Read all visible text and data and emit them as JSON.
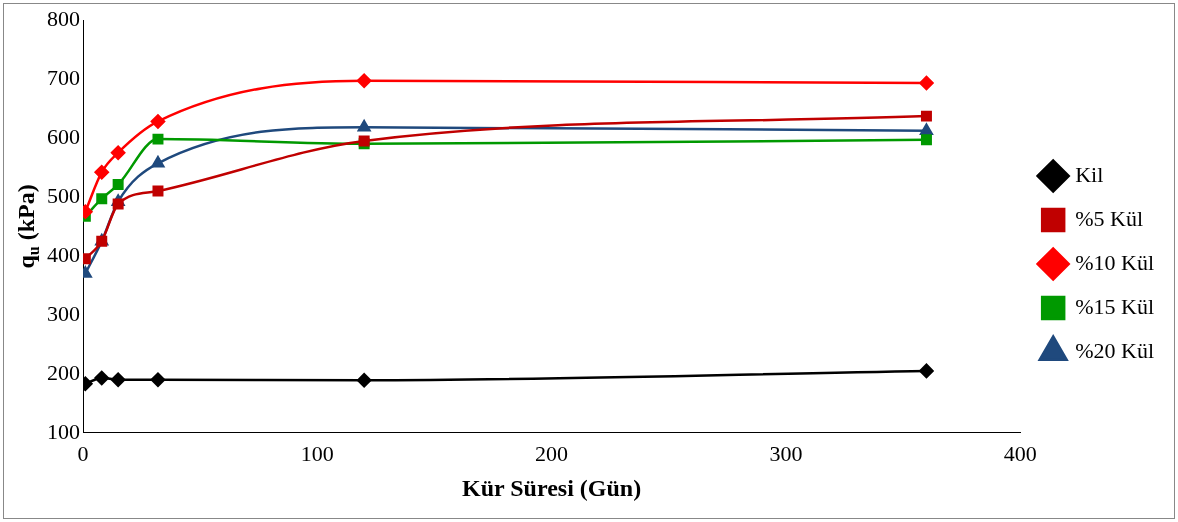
{
  "chart_data": {
    "type": "line",
    "xlabel": "Kür Süresi (Gün)",
    "ylabel": "q$_{u}$ (kPa)",
    "x": [
      1,
      8,
      15,
      32,
      120,
      360
    ],
    "xlim": [
      0,
      400
    ],
    "xticks": [
      0,
      100,
      200,
      300,
      400
    ],
    "ylim": [
      100,
      800
    ],
    "yticks": [
      100,
      200,
      300,
      400,
      500,
      600,
      700,
      800
    ],
    "grid": false,
    "legend": "right",
    "series": [
      {
        "name": "Kil",
        "color": "#000000",
        "marker": "diamond",
        "values": [
          183,
          193,
          190,
          190,
          189,
          205
        ]
      },
      {
        "name": "%5 Kül",
        "color": "#c00000",
        "marker": "square",
        "values": [
          395,
          425,
          488,
          510,
          595,
          637
        ]
      },
      {
        "name": "%10 Kül",
        "color": "#ff0000",
        "marker": "diamond",
        "values": [
          475,
          542,
          575,
          628,
          697,
          693
        ]
      },
      {
        "name": "%15 Kül",
        "color": "#009900",
        "marker": "square",
        "values": [
          467,
          497,
          521,
          598,
          590,
          597
        ]
      },
      {
        "name": "%20 Kül",
        "color": "#1f497d",
        "marker": "triangle",
        "values": [
          370,
          425,
          492,
          557,
          618,
          612
        ]
      }
    ]
  }
}
